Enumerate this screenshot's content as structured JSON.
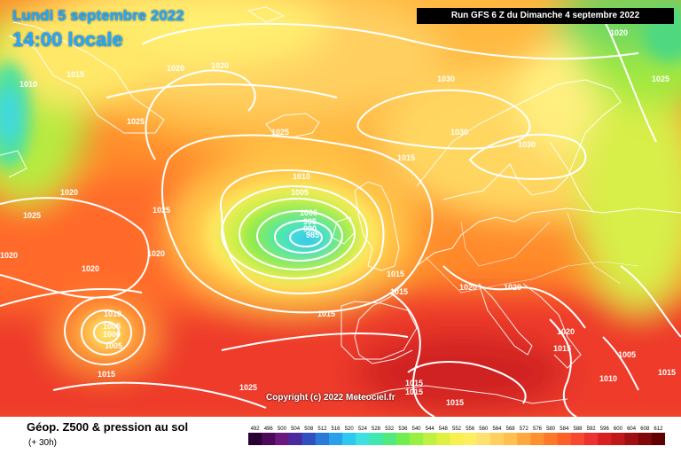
{
  "header": {
    "date": "Lundi 5 septembre 2022",
    "time": "14:00 locale",
    "run": "Run GFS 6 Z du Dimanche 4 septembre 2022"
  },
  "copyright": "Copyright (c) 2022 Meteociel.fr",
  "footer": {
    "title": "Géop. Z500 & pression au sol",
    "subtitle": "(+ 30h)"
  },
  "scale": {
    "labels": [
      "492",
      "496",
      "500",
      "504",
      "508",
      "512",
      "516",
      "520",
      "524",
      "528",
      "532",
      "536",
      "540",
      "544",
      "548",
      "552",
      "556",
      "560",
      "564",
      "568",
      "572",
      "576",
      "580",
      "584",
      "588",
      "592",
      "596",
      "600",
      "604",
      "608",
      "612"
    ],
    "colors": [
      "#2a0033",
      "#4d0a5a",
      "#6a1a7e",
      "#4b2a9e",
      "#3050c0",
      "#2a7ad8",
      "#2aa0e8",
      "#30c8f0",
      "#40e0e0",
      "#40e8b0",
      "#50ea80",
      "#70ee50",
      "#98f040",
      "#c0f040",
      "#e0f040",
      "#f8f050",
      "#ffee60",
      "#ffe070",
      "#ffd060",
      "#ffc050",
      "#ffa840",
      "#ff9030",
      "#ff7828",
      "#ff6028",
      "#f84830",
      "#ee3030",
      "#d82020",
      "#c01818",
      "#a01010",
      "#800808",
      "#600000"
    ]
  },
  "isobar_labels": [
    {
      "text": "1020"
    },
    {
      "text": "1020"
    },
    {
      "text": "1020"
    },
    {
      "text": "1015"
    },
    {
      "text": "1010"
    },
    {
      "text": "1025"
    },
    {
      "text": "1025"
    },
    {
      "text": "1030"
    },
    {
      "text": "1030"
    },
    {
      "text": "1030"
    },
    {
      "text": "1025"
    },
    {
      "text": "1015"
    },
    {
      "text": "1020"
    },
    {
      "text": "1025"
    },
    {
      "text": "1020"
    },
    {
      "text": "1010"
    },
    {
      "text": "1005"
    },
    {
      "text": "1000"
    },
    {
      "text": "995"
    },
    {
      "text": "990"
    },
    {
      "text": "985"
    },
    {
      "text": "1025"
    },
    {
      "text": "1020"
    },
    {
      "text": "1020"
    },
    {
      "text": "1015"
    },
    {
      "text": "1015"
    },
    {
      "text": "1015"
    },
    {
      "text": "1020"
    },
    {
      "text": "1020"
    },
    {
      "text": "1010"
    },
    {
      "text": "1005"
    },
    {
      "text": "1000"
    },
    {
      "text": "1005"
    },
    {
      "text": "1015"
    },
    {
      "text": "1025"
    },
    {
      "text": "1015"
    },
    {
      "text": "1015"
    },
    {
      "text": "1015"
    },
    {
      "text": "1020"
    },
    {
      "text": "1015"
    },
    {
      "text": "1010"
    },
    {
      "text": "1005"
    },
    {
      "text": "1015"
    }
  ]
}
